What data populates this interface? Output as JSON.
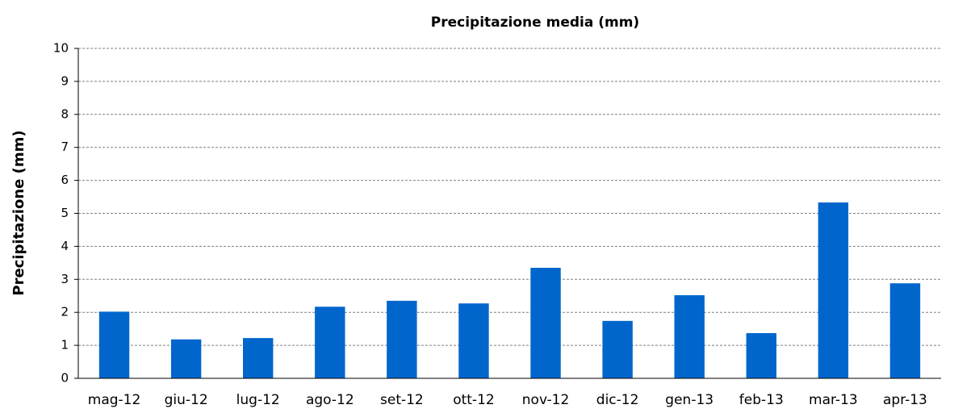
{
  "chart_data": {
    "type": "bar",
    "title": "Precipitazione media (mm)",
    "y_label": "Precipitazione (mm)",
    "categories": [
      "mag-12",
      "giu-12",
      "lug-12",
      "ago-12",
      "set-12",
      "ott-12",
      "nov-12",
      "dic-12",
      "gen-13",
      "feb-13",
      "mar-13",
      "apr-13"
    ],
    "values": [
      2.02,
      1.18,
      1.22,
      2.17,
      2.35,
      2.27,
      3.35,
      1.74,
      2.52,
      1.37,
      5.33,
      2.88
    ],
    "color": "#0066cc",
    "ylim": [
      0,
      10
    ],
    "yticks": [
      0,
      1,
      2,
      3,
      4,
      5,
      6,
      7,
      8,
      9,
      10
    ],
    "grid": true
  }
}
